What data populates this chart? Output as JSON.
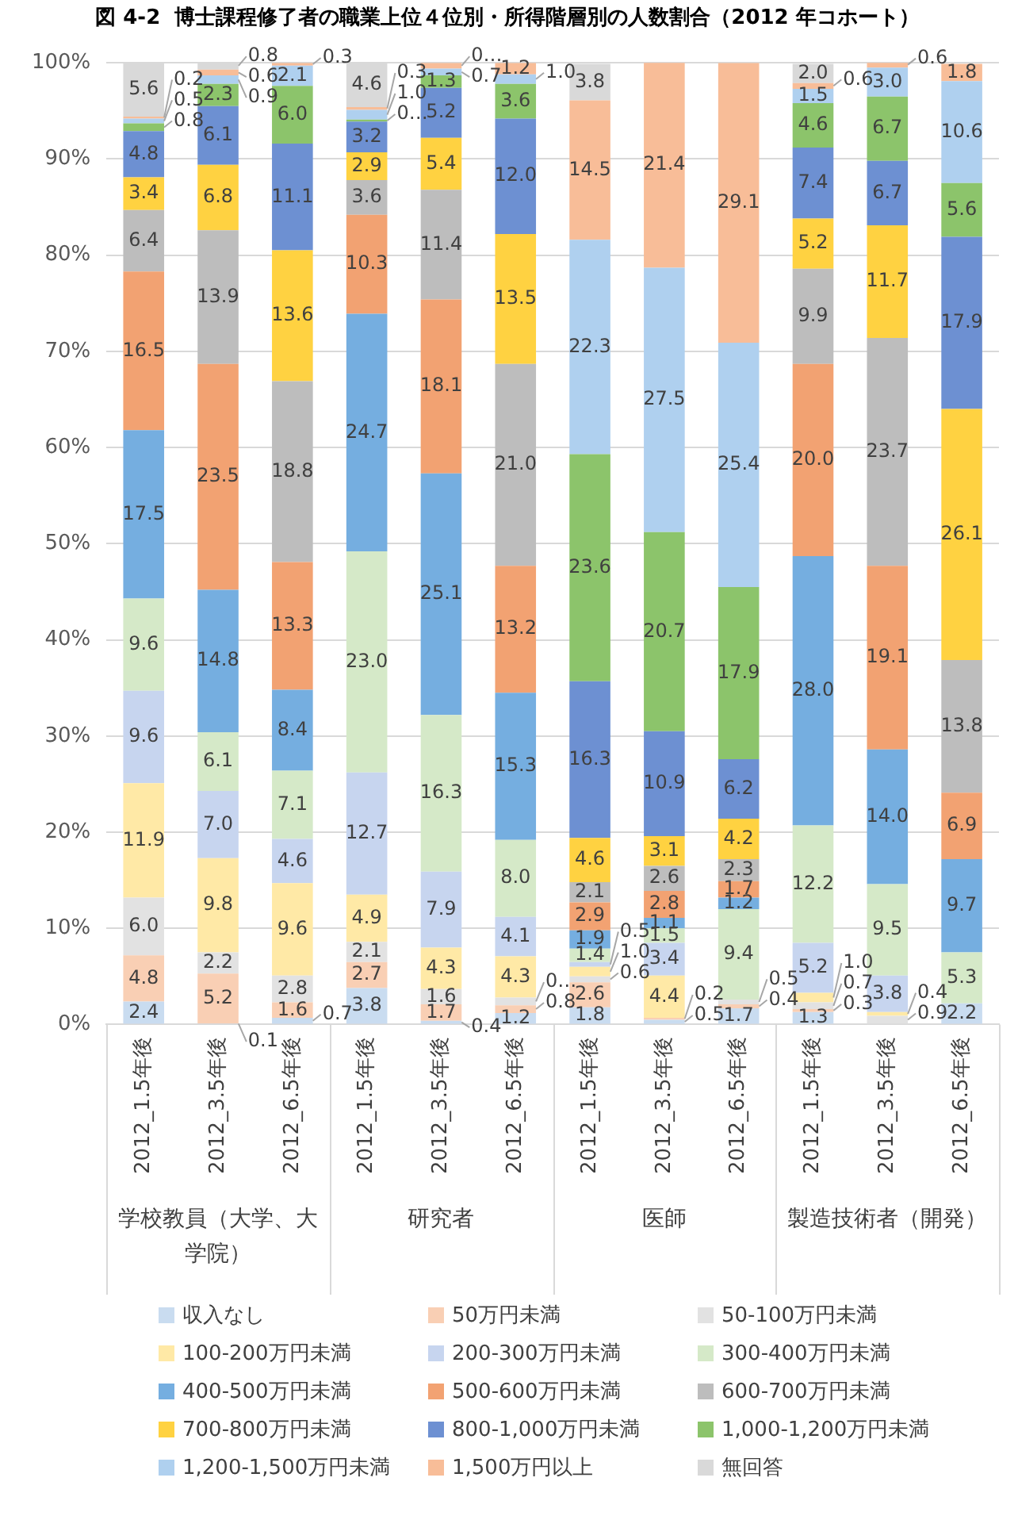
{
  "chart_data": {
    "type": "bar",
    "title": "図 4-2  博士課程修了者の職業上位４位別・所得階層別の人数割合（2012 年コホート）",
    "categories": [
      "2012_1.5年後",
      "2012_3.5年後",
      "2012_6.5年後",
      "2012_1.5年後",
      "2012_3.5年後",
      "2012_6.5年後",
      "2012_1.5年後",
      "2012_3.5年後",
      "2012_6.5年後",
      "2012_1.5年後",
      "2012_3.5年後",
      "2012_6.5年後"
    ],
    "annotations": [
      "学校教員（大学、大学院）",
      "研究者",
      "医師",
      "製造技術者（開発）"
    ],
    "stacked": true,
    "ylim": [
      0,
      100
    ],
    "yticks": [
      {
        "value": 0,
        "label": "0%"
      },
      {
        "value": 10,
        "label": "10%"
      },
      {
        "value": 20,
        "label": "20%"
      },
      {
        "value": 30,
        "label": "30%"
      },
      {
        "value": 40,
        "label": "40%"
      },
      {
        "value": 50,
        "label": "50%"
      },
      {
        "value": 60,
        "label": "60%"
      },
      {
        "value": 70,
        "label": "70%"
      },
      {
        "value": 80,
        "label": "80%"
      },
      {
        "value": 90,
        "label": "90%"
      },
      {
        "value": 100,
        "label": "100%"
      }
    ],
    "grid": "y",
    "legend": "bottom",
    "series": [
      {
        "name": "収入なし",
        "color": "#c9dcf0",
        "values": [
          2.4,
          0.1,
          0.7,
          3.8,
          0.4,
          1.2,
          1.8,
          0.5,
          1.7,
          1.3,
          null,
          2.2
        ],
        "value_labels": [
          "2.4",
          "0.1",
          "0.7",
          "3.8",
          "0.4",
          "1.2",
          "1.8",
          "0.5",
          "1.7",
          "1.3",
          null,
          "2.2"
        ]
      },
      {
        "name": "50万円未満",
        "color": "#f9cfb4",
        "values": [
          4.8,
          5.2,
          1.6,
          2.7,
          1.7,
          0.8,
          2.6,
          0.2,
          0.4,
          0.3,
          null,
          null
        ],
        "value_labels": [
          "4.8",
          "5.2",
          "1.6",
          "2.7",
          "1.7",
          "0.8",
          "2.6",
          "0.2",
          "0.4",
          "0.3",
          null,
          null
        ]
      },
      {
        "name": "50-100万円未満",
        "color": "#e2e2e2",
        "values": [
          6.0,
          2.2,
          2.8,
          2.1,
          1.6,
          0.8,
          0.6,
          null,
          0.5,
          0.7,
          0.9,
          null
        ],
        "value_labels": [
          "6.0",
          "2.2",
          "2.8",
          "2.1",
          "1.6",
          "0…",
          "0.6",
          null,
          "0.5",
          "0.7",
          "0.9",
          null
        ]
      },
      {
        "name": "100-200万円未満",
        "color": "#ffe9a6",
        "values": [
          11.9,
          9.8,
          9.6,
          4.9,
          4.3,
          4.3,
          1.0,
          4.4,
          null,
          1.0,
          0.4,
          null
        ],
        "value_labels": [
          "11.9",
          "9.8",
          "9.6",
          "4.9",
          "4.3",
          "4.3",
          "1.0",
          "4.4",
          null,
          "1.0",
          "0.4",
          null
        ]
      },
      {
        "name": "200-300万円未満",
        "color": "#c7d5ef",
        "values": [
          9.6,
          7.0,
          4.6,
          12.7,
          7.9,
          4.1,
          0.5,
          3.4,
          null,
          5.2,
          3.8,
          null
        ],
        "value_labels": [
          "9.6",
          "7.0",
          "4.6",
          "12.7",
          "7.9",
          "4.1",
          "0.5",
          "3.4",
          null,
          "5.2",
          "3.8",
          null
        ]
      },
      {
        "name": "300-400万円未満",
        "color": "#d5e9c8",
        "values": [
          9.6,
          6.1,
          7.1,
          23.0,
          16.3,
          8.0,
          1.4,
          1.5,
          9.4,
          12.2,
          9.5,
          5.3
        ],
        "value_labels": [
          "9.6",
          "6.1",
          "7.1",
          "23.0",
          "16.3",
          "8.0",
          "1.4",
          "1.5",
          "9.4",
          "12.2",
          "9.5",
          "5.3"
        ]
      },
      {
        "name": "400-500万円未満",
        "color": "#75aee0",
        "values": [
          17.5,
          14.8,
          8.4,
          24.7,
          25.1,
          15.3,
          1.9,
          1.1,
          1.2,
          28.0,
          14.0,
          9.7
        ],
        "value_labels": [
          "17.5",
          "14.8",
          "8.4",
          "24.7",
          "25.1",
          "15.3",
          "1.9",
          "1.1",
          "1.2",
          "28.0",
          "14.0",
          "9.7"
        ]
      },
      {
        "name": "500-600万円未満",
        "color": "#f2a272",
        "values": [
          16.5,
          23.5,
          13.3,
          10.3,
          18.1,
          13.2,
          2.9,
          2.8,
          1.7,
          20.0,
          19.1,
          6.9
        ],
        "value_labels": [
          "16.5",
          "23.5",
          "13.3",
          "10.3",
          "18.1",
          "13.2",
          "2.9",
          "2.8",
          "1.7",
          "20.0",
          "19.1",
          "6.9"
        ]
      },
      {
        "name": "600-700万円未満",
        "color": "#bdbdbd",
        "values": [
          6.4,
          13.9,
          18.8,
          3.6,
          11.4,
          21.0,
          2.1,
          2.6,
          2.3,
          9.9,
          23.7,
          13.8
        ],
        "value_labels": [
          "6.4",
          "13.9",
          "18.8",
          "3.6",
          "11.4",
          "21.0",
          "2.1",
          "2.6",
          "2.3",
          "9.9",
          "23.7",
          "13.8"
        ]
      },
      {
        "name": "700-800万円未満",
        "color": "#ffd241",
        "values": [
          3.4,
          6.8,
          13.6,
          2.9,
          5.4,
          13.5,
          4.6,
          3.1,
          4.2,
          5.2,
          11.7,
          26.1
        ],
        "value_labels": [
          "3.4",
          "6.8",
          "13.6",
          "2.9",
          "5.4",
          "13.5",
          "4.6",
          "3.1",
          "4.2",
          "5.2",
          "11.7",
          "26.1"
        ]
      },
      {
        "name": "800-1,000万円未満",
        "color": "#6d90d2",
        "values": [
          4.8,
          6.1,
          11.1,
          3.2,
          5.2,
          12.0,
          16.3,
          10.9,
          6.2,
          7.4,
          6.7,
          17.9
        ],
        "value_labels": [
          "4.8",
          "6.1",
          "11.1",
          "3.2",
          "5.2",
          "12.0",
          "16.3",
          "10.9",
          "6.2",
          "7.4",
          "6.7",
          "17.9"
        ]
      },
      {
        "name": "1,000-1,200万円未満",
        "color": "#8cc46b",
        "values": [
          0.8,
          2.3,
          6.0,
          0.2,
          1.3,
          3.6,
          23.6,
          20.7,
          17.9,
          4.6,
          6.7,
          5.6
        ],
        "value_labels": [
          "0.8",
          "2.3",
          "6.0",
          "0…",
          "1.3",
          "3.6",
          "23.6",
          "20.7",
          "17.9",
          "4.6",
          "6.7",
          "5.6"
        ]
      },
      {
        "name": "1,200-1,500万円未満",
        "color": "#afd0ef",
        "values": [
          0.5,
          0.9,
          2.1,
          1.0,
          0.7,
          1.0,
          22.3,
          27.5,
          25.4,
          1.5,
          3.0,
          10.6
        ],
        "value_labels": [
          "0.5",
          "0.9",
          "2.1",
          "1.0",
          "0.7",
          "1.0",
          "22.3",
          "27.5",
          "25.4",
          "1.5",
          "3.0",
          "10.6"
        ]
      },
      {
        "name": "1,500万円以上",
        "color": "#f8bd98",
        "values": [
          0.2,
          0.6,
          0.3,
          0.3,
          0.6,
          1.2,
          14.5,
          21.4,
          29.1,
          0.6,
          0.6,
          1.8
        ],
        "value_labels": [
          "0.2",
          "0.6",
          "0.3",
          "0.3",
          "0…",
          "1.2",
          "14.5",
          "21.4",
          "29.1",
          "0.6",
          "0.6",
          "1.8"
        ]
      },
      {
        "name": "無回答",
        "color": "#d9d9d9",
        "values": [
          5.6,
          0.8,
          null,
          4.6,
          null,
          null,
          3.8,
          null,
          null,
          2.0,
          null,
          null
        ],
        "value_labels": [
          "5.6",
          "0.8",
          null,
          "4.6",
          null,
          null,
          "3.8",
          null,
          null,
          "2.0",
          null,
          null
        ]
      }
    ]
  }
}
